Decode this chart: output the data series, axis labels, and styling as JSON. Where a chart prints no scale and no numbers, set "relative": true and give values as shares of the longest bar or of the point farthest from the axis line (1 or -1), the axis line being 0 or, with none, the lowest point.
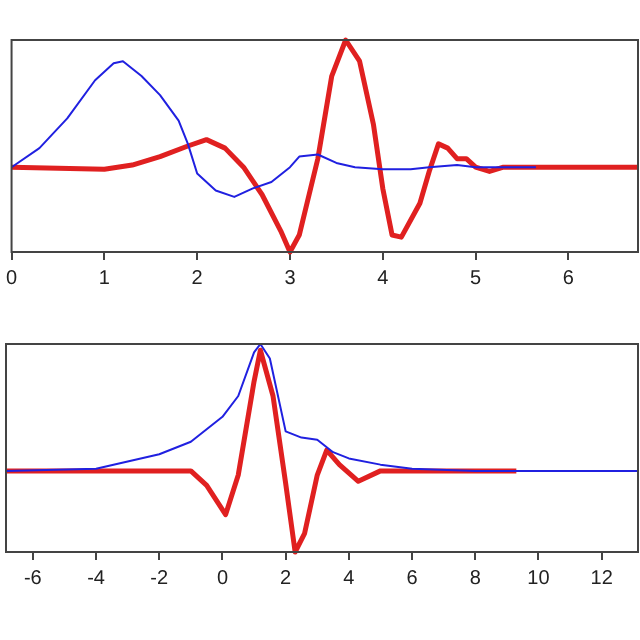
{
  "chart_data": [
    {
      "type": "line",
      "relative": true,
      "xlim": [
        0,
        6.75
      ],
      "xticks": [
        0,
        1,
        2,
        3,
        4,
        5,
        6
      ],
      "grid": false,
      "legend": false,
      "marker": "none",
      "series": [
        {
          "color": "#2020e0",
          "x": [
            0,
            0.3,
            0.6,
            0.9,
            1.1,
            1.2,
            1.4,
            1.6,
            1.8,
            1.9,
            2.0,
            2.2,
            2.4,
            2.6,
            2.8,
            3.0,
            3.1,
            3.3,
            3.5,
            3.7,
            4.0,
            4.3,
            4.5,
            4.8,
            5.0,
            5.3,
            5.65
          ],
          "values": [
            0.4,
            0.49,
            0.63,
            0.81,
            0.89,
            0.9,
            0.83,
            0.74,
            0.62,
            0.51,
            0.37,
            0.29,
            0.26,
            0.3,
            0.33,
            0.4,
            0.45,
            0.46,
            0.42,
            0.4,
            0.39,
            0.39,
            0.4,
            0.41,
            0.4,
            0.4,
            0.4
          ]
        },
        {
          "color": "#e02020",
          "x": [
            0,
            1.0,
            1.3,
            1.6,
            1.9,
            2.1,
            2.3,
            2.5,
            2.7,
            2.9,
            3.0,
            3.1,
            3.3,
            3.45,
            3.6,
            3.75,
            3.9,
            4.0,
            4.1,
            4.2,
            4.4,
            4.5,
            4.6,
            4.7,
            4.8,
            4.9,
            5.0,
            5.15,
            5.3,
            6.75
          ],
          "values": [
            0.4,
            0.39,
            0.41,
            0.45,
            0.5,
            0.53,
            0.49,
            0.4,
            0.27,
            0.1,
            0,
            0.08,
            0.44,
            0.83,
            1,
            0.9,
            0.6,
            0.3,
            0.08,
            0.07,
            0.23,
            0.38,
            0.51,
            0.49,
            0.44,
            0.44,
            0.4,
            0.38,
            0.4,
            0.4
          ]
        }
      ]
    },
    {
      "type": "line",
      "relative": true,
      "xlim": [
        -6.85,
        13.15
      ],
      "xticks": [
        -6,
        -4,
        -2,
        0,
        2,
        4,
        6,
        8,
        10,
        12
      ],
      "grid": false,
      "legend": false,
      "marker": "none",
      "series": [
        {
          "color": "#2020e0",
          "x": [
            -6.85,
            -4,
            -2,
            -1,
            0,
            0.5,
            1.0,
            1.2,
            1.5,
            2.0,
            2.5,
            3.0,
            3.5,
            4,
            5,
            6,
            8,
            13.15
          ],
          "values": [
            0.39,
            0.4,
            0.47,
            0.53,
            0.65,
            0.75,
            0.96,
            1,
            0.93,
            0.58,
            0.55,
            0.54,
            0.48,
            0.45,
            0.42,
            0.4,
            0.39,
            0.39
          ]
        },
        {
          "color": "#e02020",
          "x": [
            -6.85,
            -1,
            -0.5,
            0.1,
            0.5,
            1.0,
            1.2,
            1.6,
            2.0,
            2.3,
            2.6,
            3.0,
            3.3,
            3.7,
            4.3,
            5,
            9.3
          ],
          "values": [
            0.39,
            0.39,
            0.32,
            0.18,
            0.37,
            0.82,
            0.97,
            0.75,
            0.33,
            0,
            0.09,
            0.37,
            0.49,
            0.42,
            0.34,
            0.39,
            0.39
          ]
        }
      ]
    }
  ]
}
